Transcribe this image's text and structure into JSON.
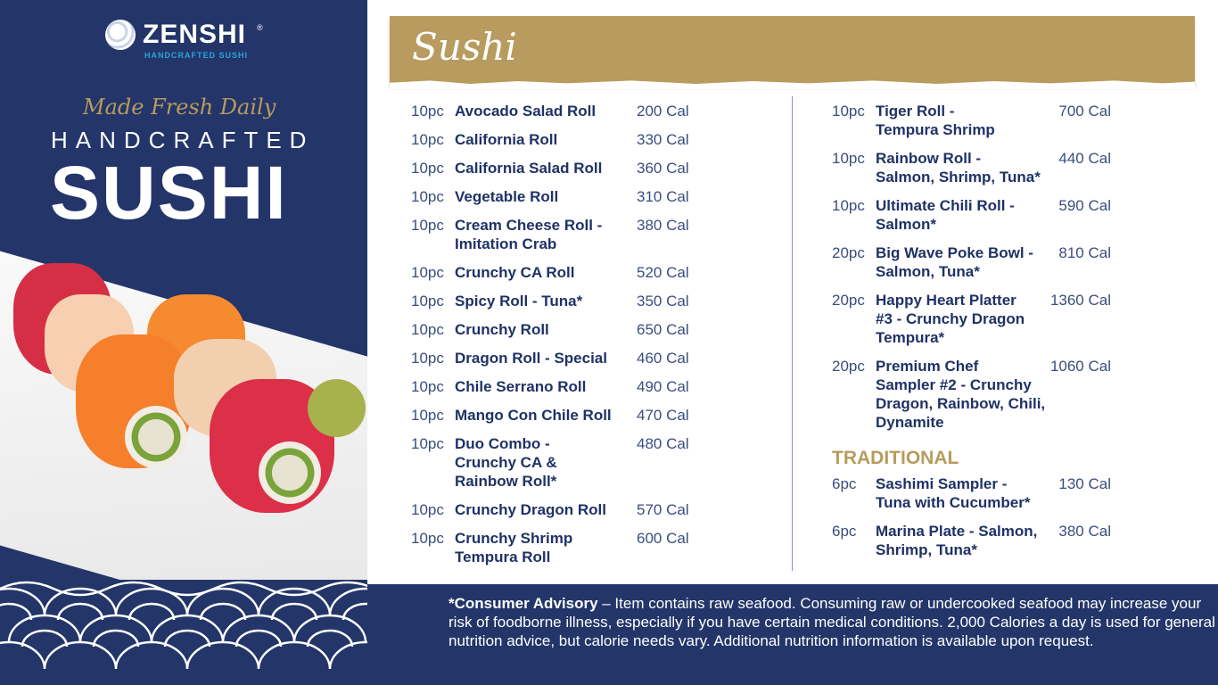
{
  "brand": {
    "name": "ZENSHI",
    "registered": "®",
    "tagline": "HANDCRAFTED SUSHI"
  },
  "hero": {
    "script": "Made Fresh Daily",
    "line1": "HANDCRAFTED",
    "line2": "SUSHI"
  },
  "colors": {
    "navy": "#233569",
    "gold": "#b89b5e",
    "text": "#1f3266"
  },
  "menu": {
    "title": "Sushi",
    "left": [
      {
        "qty": "10pc",
        "name": "Avocado Salad Roll",
        "cal": "200 Cal"
      },
      {
        "qty": "10pc",
        "name": "California Roll",
        "cal": "330 Cal"
      },
      {
        "qty": "10pc",
        "name": "California Salad Roll",
        "cal": "360 Cal"
      },
      {
        "qty": "10pc",
        "name": "Vegetable Roll",
        "cal": "310 Cal"
      },
      {
        "qty": "10pc",
        "name": "Cream Cheese Roll -\nImitation Crab",
        "cal": "380 Cal"
      },
      {
        "qty": "10pc",
        "name": "Crunchy CA Roll",
        "cal": "520 Cal"
      },
      {
        "qty": "10pc",
        "name": "Spicy Roll - Tuna*",
        "cal": "350 Cal"
      },
      {
        "qty": "10pc",
        "name": "Crunchy Roll",
        "cal": "650 Cal"
      },
      {
        "qty": "10pc",
        "name": "Dragon Roll - Special",
        "cal": "460 Cal"
      },
      {
        "qty": "10pc",
        "name": "Chile Serrano Roll",
        "cal": "490 Cal"
      },
      {
        "qty": "10pc",
        "name": "Mango Con Chile Roll",
        "cal": "470 Cal"
      },
      {
        "qty": "10pc",
        "name": "Duo Combo -\nCrunchy CA &\nRainbow Roll*",
        "cal": "480 Cal"
      },
      {
        "qty": "10pc",
        "name": "Crunchy Dragon Roll",
        "cal": "570 Cal"
      },
      {
        "qty": "10pc",
        "name": "Crunchy Shrimp\nTempura Roll",
        "cal": "600 Cal"
      }
    ],
    "right": [
      {
        "qty": "10pc",
        "name": "Tiger Roll -\nTempura Shrimp",
        "cal": "700 Cal"
      },
      {
        "qty": "10pc",
        "name": "Rainbow Roll -\nSalmon, Shrimp, Tuna*",
        "cal": "440 Cal"
      },
      {
        "qty": "10pc",
        "name": "Ultimate Chili Roll -\nSalmon*",
        "cal": "590 Cal"
      },
      {
        "qty": "20pc",
        "name": "Big Wave Poke Bowl -\nSalmon, Tuna*",
        "cal": "810 Cal"
      },
      {
        "qty": "20pc",
        "name": "Happy Heart Platter\n#3 - Crunchy Dragon\nTempura*",
        "cal": "1360 Cal"
      },
      {
        "qty": "20pc",
        "name": "Premium Chef\nSampler #2 - Crunchy\nDragon, Rainbow, Chili,\nDynamite",
        "cal": "1060 Cal"
      }
    ],
    "traditional_title": "TRADITIONAL",
    "traditional": [
      {
        "qty": "6pc",
        "name": "Sashimi Sampler -\nTuna with Cucumber*",
        "cal": "130 Cal"
      },
      {
        "qty": "6pc",
        "name": "Marina Plate - Salmon,\nShrimp, Tuna*",
        "cal": "380 Cal"
      }
    ]
  },
  "footer": {
    "bold": "*Consumer Advisory",
    "text": " – Item contains raw seafood. Consuming raw or undercooked seafood may increase your risk of foodborne illness, especially if you have certain medical conditions. 2,000 Calories a day is used for general nutrition advice, but calorie needs vary. Additional nutrition information is available upon request."
  }
}
